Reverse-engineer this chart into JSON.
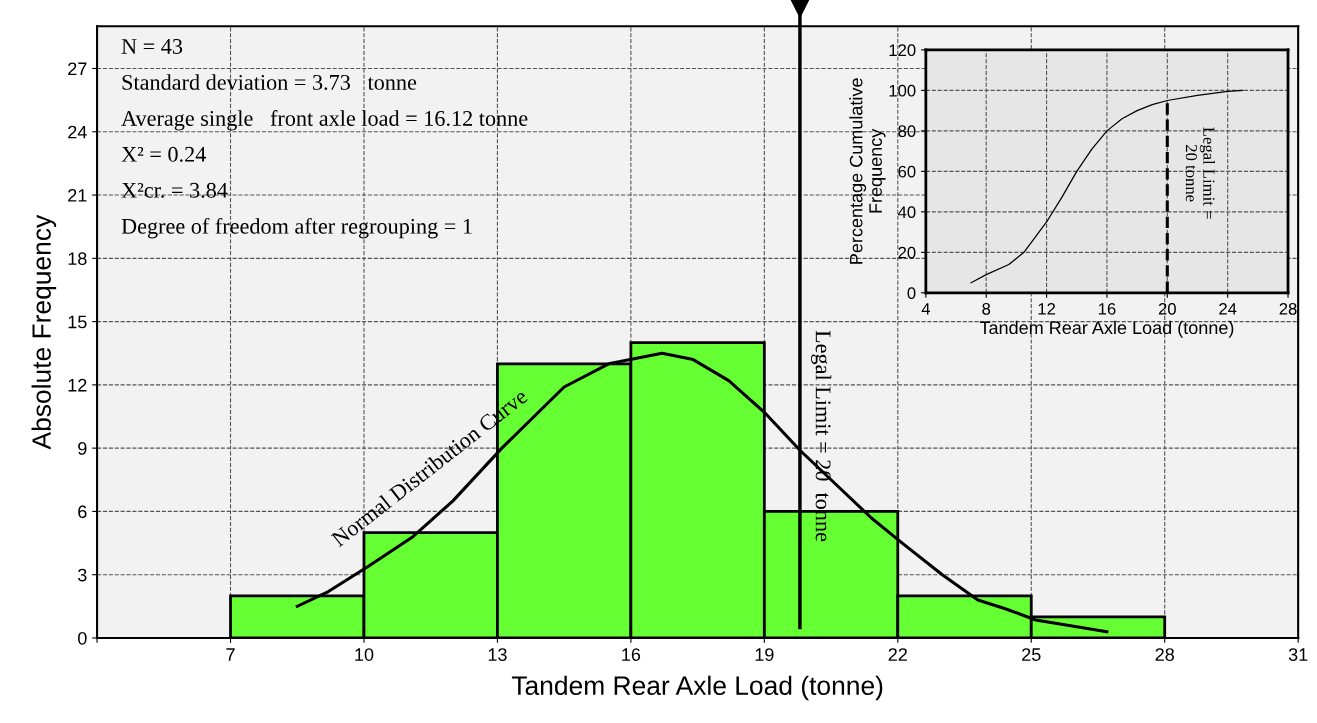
{
  "chart_data": [
    {
      "type": "histogram",
      "xlabel": "Tandem Rear Axle Load (tonne)",
      "ylabel": "Absolute Frequency",
      "xlim": [
        4,
        31
      ],
      "xticks": [
        {
          "value": 4,
          "label": null
        },
        7,
        10,
        13,
        16,
        19,
        22,
        25,
        28,
        31
      ],
      "ylim": [
        0,
        29
      ],
      "yticks": [
        0,
        3,
        6,
        9,
        12,
        15,
        18,
        21,
        24,
        27
      ],
      "grid": true,
      "series": [
        {
          "type": "histogram",
          "color": "#66ff33",
          "bins": [
            7,
            10,
            13,
            16,
            19,
            22,
            25,
            28
          ],
          "values": [
            2,
            5,
            13,
            14,
            6,
            2,
            1
          ]
        },
        {
          "type": "line",
          "color": "#000000",
          "x": [
            8.5,
            9.2,
            10.1,
            11.1,
            12,
            13.1,
            14.5,
            15.5,
            16.7,
            17.4,
            18.2,
            19.0,
            19.8,
            20.6,
            21.4,
            22.1,
            23,
            23.8,
            24.4,
            25.1,
            26.7
          ],
          "values": [
            1.5,
            2.2,
            3.4,
            4.8,
            6.5,
            9.0,
            11.9,
            13.0,
            13.5,
            13.2,
            12.2,
            10.7,
            8.9,
            7.3,
            5.7,
            4.5,
            3.0,
            1.8,
            1.4,
            0.85,
            0.3
          ]
        }
      ],
      "ref_lines": [
        {
          "axis": "x",
          "value": 19.8,
          "label": "Legal Limit = 20  tonne",
          "color": "#000000"
        }
      ],
      "annotations": [
        "N = 43",
        "Standard deviation = 3.73   tonne",
        "Average single   front axle load = 16.12 tonne",
        "X² = 0.24",
        "X²cr. = 3.84",
        "Degree of freedom after regrouping = 1",
        "Normal Distribution Curve"
      ]
    },
    {
      "type": "line",
      "xlabel": "Tandem Rear Axle Load (tonne)",
      "ylabel": "Percentage Cumulative\nFrequency",
      "xlim": [
        4,
        28
      ],
      "xticks": [
        4,
        8,
        12,
        16,
        20,
        24,
        28
      ],
      "ylim": [
        0,
        120
      ],
      "yticks": [
        0,
        20,
        40,
        60,
        80,
        100,
        120
      ],
      "grid": true,
      "series": [
        {
          "color": "#000000",
          "x": [
            7,
            8,
            9.5,
            10.5,
            12,
            13,
            14,
            15,
            16,
            17,
            18,
            19,
            20,
            22,
            24,
            25
          ],
          "values": [
            5,
            9,
            14,
            20,
            35,
            47,
            60,
            71,
            80,
            86,
            90,
            93,
            95,
            97.5,
            99.5,
            100
          ]
        }
      ],
      "ref_lines": [
        {
          "axis": "x",
          "value": 20,
          "label": "Legal Limit =\n20 tonne",
          "color": "#000000",
          "line_style": "dashed"
        }
      ]
    }
  ]
}
